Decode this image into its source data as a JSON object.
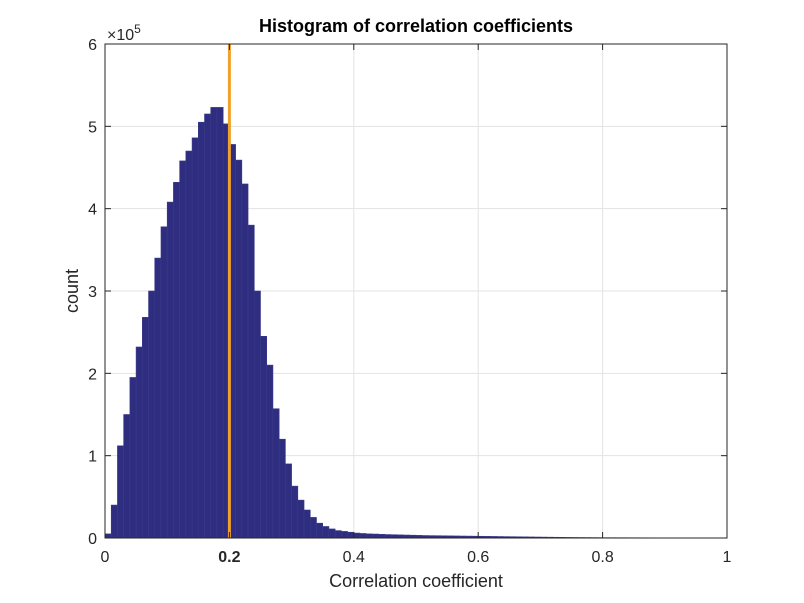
{
  "chart_data": {
    "type": "bar",
    "title": "Histogram of correlation coefficients",
    "xlabel": "Correlation coefficient",
    "ylabel": "count",
    "xlim": [
      0,
      1
    ],
    "ylim": [
      0,
      600000
    ],
    "y_exponent_label": "×10",
    "y_exponent_power": "5",
    "x_ticks": [
      {
        "value": 0,
        "label": "0"
      },
      {
        "value": 0.2,
        "label": "0.2",
        "highlight": true
      },
      {
        "value": 0.4,
        "label": "0.4"
      },
      {
        "value": 0.6,
        "label": "0.6"
      },
      {
        "value": 0.8,
        "label": "0.8"
      },
      {
        "value": 1,
        "label": "1"
      }
    ],
    "y_ticks": [
      {
        "value": 0,
        "label": "0"
      },
      {
        "value": 100000,
        "label": "1"
      },
      {
        "value": 200000,
        "label": "2"
      },
      {
        "value": 300000,
        "label": "3"
      },
      {
        "value": 400000,
        "label": "4"
      },
      {
        "value": 500000,
        "label": "5"
      },
      {
        "value": 600000,
        "label": "6"
      }
    ],
    "grid": true,
    "bin_width": 0.01,
    "bin_start": 0,
    "values": [
      5000,
      40000,
      112000,
      150000,
      195000,
      232000,
      268000,
      300000,
      340000,
      378000,
      408000,
      432000,
      458000,
      470000,
      486000,
      505000,
      515000,
      523000,
      523000,
      503000,
      478000,
      459000,
      430000,
      380000,
      300000,
      245000,
      210000,
      157000,
      120000,
      90000,
      63000,
      46000,
      34000,
      25000,
      18000,
      14000,
      11000,
      9000,
      8000,
      7000,
      6000,
      5500,
      5000,
      4800,
      4500,
      4200,
      4000,
      3800,
      3600,
      3400,
      3200,
      3000,
      2900,
      2800,
      2700,
      2600,
      2500,
      2400,
      2300,
      2200,
      2100,
      2000,
      1900,
      1800,
      1700,
      1600,
      1500,
      1400,
      1300,
      1200,
      1100,
      1000,
      900,
      800,
      700,
      650,
      600,
      550,
      500,
      450,
      400,
      380,
      360,
      340,
      320,
      300,
      280,
      260,
      240,
      220,
      200,
      180,
      160,
      140,
      120,
      100,
      80,
      60,
      40,
      20
    ],
    "bar_color": "#2e2d7f",
    "bar_edge_color": "#3a3a8a",
    "threshold": {
      "value": 0.2,
      "color": "#f0a12a"
    }
  }
}
